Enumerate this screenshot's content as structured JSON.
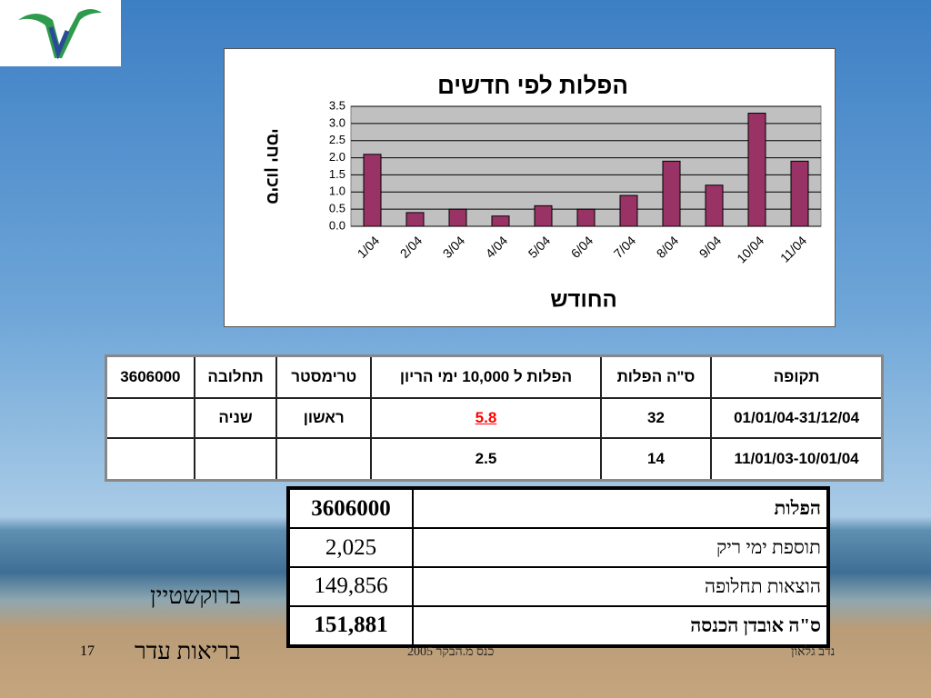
{
  "chart_data": {
    "type": "bar",
    "title": "הפלות לפי חדשים",
    "y_label": "סיכון יחסי",
    "x_label": "החודש",
    "categories": [
      "1/04",
      "2/04",
      "3/04",
      "4/04",
      "5/04",
      "6/04",
      "7/04",
      "8/04",
      "9/04",
      "10/04",
      "11/04"
    ],
    "values": [
      2.1,
      0.4,
      0.5,
      0.3,
      0.6,
      0.5,
      0.9,
      1.9,
      1.2,
      3.3,
      1.9
    ],
    "color": "#993366",
    "ylim": [
      0,
      3.5
    ],
    "yticks": [
      {
        "value": 0,
        "label": "0.0"
      },
      0.5,
      {
        "value": 1,
        "label": "1.0"
      },
      1.5,
      {
        "value": 2,
        "label": "2.0"
      },
      2.5,
      {
        "value": 3,
        "label": "3.0"
      },
      3.5
    ],
    "grid": true
  },
  "table1": {
    "header": [
      "תקופה",
      "ס\"ה הפלות",
      "הפלות ל 10,000  ימי הריון",
      "טרימסטר",
      "תחלובה",
      "3606000"
    ],
    "rows": [
      [
        "01/01/04-31/12/04",
        "32",
        "5.8",
        "ראשון",
        "שניה",
        null
      ],
      [
        "11/01/03-10/01/04",
        "14",
        "2.5",
        null,
        null,
        null
      ]
    ]
  },
  "table2": {
    "rows": [
      [
        "הפלות",
        "3606000"
      ],
      [
        "תוספת ימי ריק",
        "2,025"
      ],
      [
        "הוצאות תחלופה",
        "149,856"
      ],
      [
        "ס\"ה אובדן הכנסה",
        "151,881"
      ]
    ]
  },
  "footer": {
    "author": "ברוקשטיין",
    "department": "בריאות עדר",
    "page": "17",
    "event": "כנס מ.הבקר 2005",
    "presenter": "נדב גלאון"
  }
}
